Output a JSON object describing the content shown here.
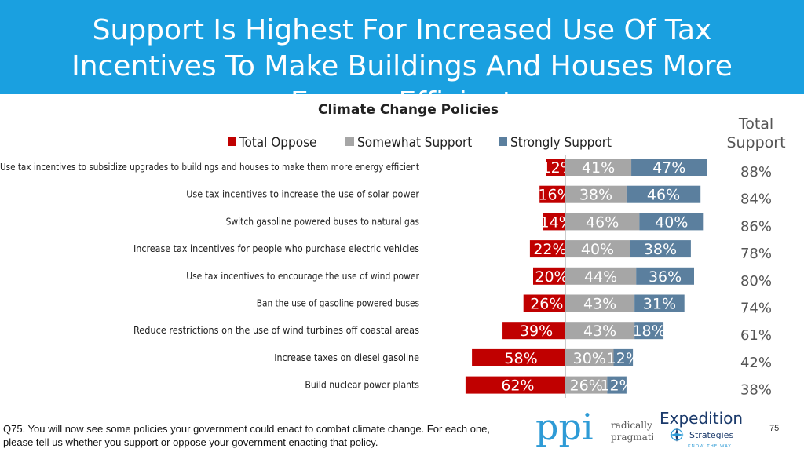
{
  "header": {
    "title": "Support Is Highest For Increased Use Of Tax Incentives To Make Buildings And Houses More Energy Efficient"
  },
  "chart_data": {
    "type": "bar",
    "title": "Climate Change Policies",
    "orientation": "horizontal-diverging",
    "categories": [
      "Use tax incentives to subsidize upgrades to buildings and houses to make them more energy efficient",
      "Use tax incentives to increase the use of solar power",
      "Switch gasoline powered buses to natural gas",
      "Increase tax incentives for people who purchase electric vehicles",
      "Use tax incentives to encourage the use of wind power",
      "Ban the use of gasoline powered buses",
      "Reduce restrictions on the use of wind turbines off coastal areas",
      "Increase taxes on diesel gasoline",
      "Build nuclear power plants"
    ],
    "series": [
      {
        "name": "Total Oppose",
        "color": "#c00000",
        "values": [
          12,
          16,
          14,
          22,
          20,
          26,
          39,
          58,
          62
        ],
        "labels": [
          "12%",
          "16%",
          "14%",
          "22%",
          "20%",
          "26%",
          "39%",
          "58%",
          "62%"
        ]
      },
      {
        "name": "Somewhat Support",
        "color": "#a6a6a6",
        "values": [
          41,
          38,
          46,
          40,
          44,
          43,
          43,
          30,
          26
        ],
        "labels": [
          "41%",
          "38%",
          "46%",
          "40%",
          "44%",
          "43%",
          "43%",
          "30%",
          "26%"
        ]
      },
      {
        "name": "Strongly Support",
        "color": "#5b7f9e",
        "values": [
          47,
          46,
          40,
          38,
          36,
          31,
          18,
          12,
          12
        ],
        "labels": [
          "47%",
          "46%",
          "40%",
          "38%",
          "36%",
          "31%",
          "18%",
          "12%",
          "12%"
        ]
      }
    ],
    "total_support": {
      "header": "Total Support",
      "values": [
        "88%",
        "84%",
        "86%",
        "78%",
        "80%",
        "74%",
        "61%",
        "42%",
        "38%"
      ]
    },
    "legend_position": "top",
    "grid": false
  },
  "footer": {
    "question": "Q75. You will now see some policies your government could enact to combat climate change.  For each one, please tell us whether you support or oppose your government enacting that policy.",
    "ppi_logo": {
      "mark": "ppi",
      "line1": "radically",
      "line2": "pragmatic"
    },
    "expedition_logo": {
      "line1": "Expedition",
      "line2": "Strategies",
      "tagline": "KNOW THE WAY"
    },
    "page_number": "75"
  }
}
